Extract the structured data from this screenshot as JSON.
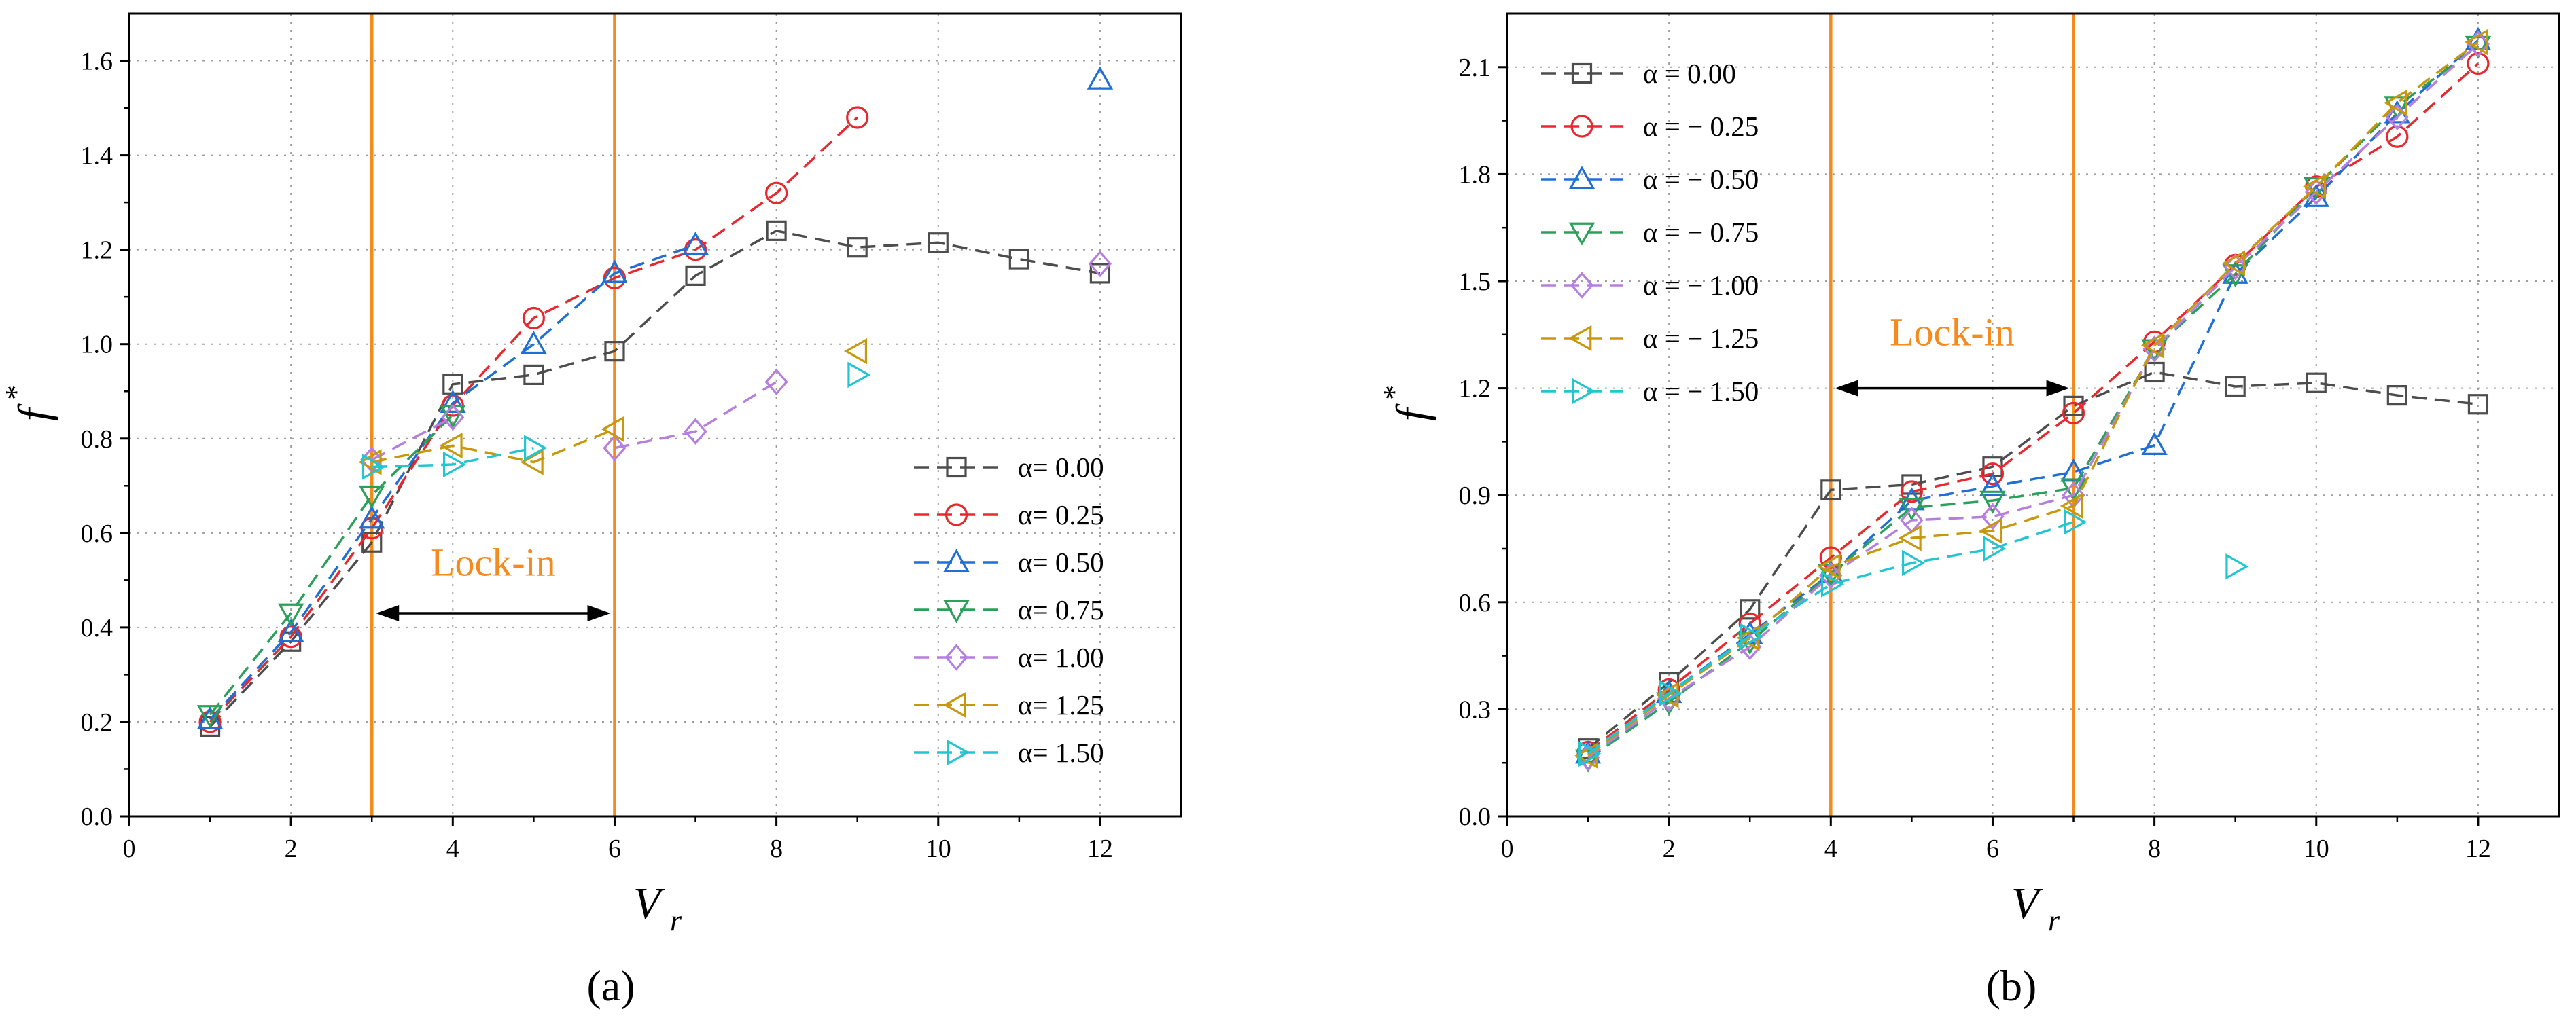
{
  "figure": {
    "captions": [
      "(a)",
      "(b)"
    ]
  },
  "colors": {
    "s0": "#4D4D4D",
    "s1": "#E8282E",
    "s2": "#1F6FD6",
    "s3": "#2CA05A",
    "s4": "#B57FE0",
    "s5": "#C8980C",
    "s6": "#22C5D0",
    "lockin": "#F58A1E",
    "grid": "#9E9E9E"
  },
  "chart_data": [
    {
      "type": "line",
      "caption": "(a)",
      "xlabel": "V",
      "xlabel_sub": "r",
      "ylabel": "f",
      "ylabel_sup": "*",
      "xlim": [
        0,
        13
      ],
      "ylim": [
        0,
        1.7
      ],
      "xticks": [
        0,
        2,
        4,
        6,
        8,
        10,
        12
      ],
      "yticks": [
        0.0,
        0.2,
        0.4,
        0.6,
        0.8,
        1.0,
        1.2,
        1.4,
        1.6
      ],
      "ytick_decimals": 1,
      "grid": true,
      "legend_position": "right",
      "lock_in": {
        "label": "Lock-in",
        "x_start": 3,
        "x_end": 6,
        "label_y": 0.51,
        "arrow_y": 0.43
      },
      "series": [
        {
          "name": "α=  0.00",
          "marker": "square",
          "color": "s0",
          "segments": [
            [
              [
                1,
                0.19
              ],
              [
                2,
                0.37
              ],
              [
                3,
                0.58
              ],
              [
                4,
                0.915
              ],
              [
                5,
                0.935
              ],
              [
                6,
                0.985
              ],
              [
                7,
                1.145
              ],
              [
                8,
                1.24
              ],
              [
                9,
                1.205
              ],
              [
                10,
                1.215
              ],
              [
                11,
                1.18
              ],
              [
                12,
                1.15
              ]
            ]
          ]
        },
        {
          "name": "α=  0.25",
          "marker": "circle",
          "color": "s1",
          "segments": [
            [
              [
                1,
                0.2
              ],
              [
                2,
                0.38
              ],
              [
                3,
                0.61
              ],
              [
                4,
                0.87
              ],
              [
                5,
                1.055
              ],
              [
                6,
                1.14
              ],
              [
                7,
                1.2
              ],
              [
                8,
                1.32
              ],
              [
                9,
                1.48
              ]
            ]
          ]
        },
        {
          "name": "α=  0.50",
          "marker": "triangle-up",
          "color": "s2",
          "segments": [
            [
              [
                1,
                0.205
              ],
              [
                2,
                0.39
              ],
              [
                3,
                0.63
              ],
              [
                4,
                0.875
              ],
              [
                5,
                1.0
              ],
              [
                6,
                1.15
              ],
              [
                7,
                1.21
              ]
            ],
            [
              [
                12,
                1.56
              ]
            ]
          ]
        },
        {
          "name": "α=  0.75",
          "marker": "triangle-down",
          "color": "s3",
          "segments": [
            [
              [
                1,
                0.215
              ],
              [
                2,
                0.43
              ],
              [
                3,
                0.68
              ],
              [
                4,
                0.85
              ]
            ]
          ]
        },
        {
          "name": "α=  1.00",
          "marker": "diamond",
          "color": "s4",
          "segments": [
            [
              [
                3,
                0.755
              ],
              [
                4,
                0.845
              ]
            ],
            [
              [
                6,
                0.78
              ],
              [
                7,
                0.815
              ],
              [
                8,
                0.92
              ]
            ],
            [
              [
                12,
                1.17
              ]
            ]
          ]
        },
        {
          "name": "α=  1.25",
          "marker": "triangle-left",
          "color": "s5",
          "segments": [
            [
              [
                3,
                0.75
              ],
              [
                4,
                0.785
              ],
              [
                5,
                0.75
              ],
              [
                6,
                0.82
              ]
            ],
            [
              [
                9,
                0.985
              ]
            ]
          ]
        },
        {
          "name": "α=  1.50",
          "marker": "triangle-right",
          "color": "s6",
          "segments": [
            [
              [
                3,
                0.74
              ],
              [
                4,
                0.745
              ],
              [
                5,
                0.78
              ]
            ],
            [
              [
                9,
                0.935
              ]
            ]
          ]
        }
      ]
    },
    {
      "type": "line",
      "caption": "(b)",
      "xlabel": "V",
      "xlabel_sub": "r",
      "ylabel": "f",
      "ylabel_sup": "*",
      "xlim": [
        0,
        13
      ],
      "ylim": [
        0,
        2.25
      ],
      "xticks": [
        0,
        2,
        4,
        6,
        8,
        10,
        12
      ],
      "yticks": [
        0.0,
        0.3,
        0.6,
        0.9,
        1.2,
        1.5,
        1.8,
        2.1
      ],
      "ytick_decimals": 1,
      "grid": true,
      "legend_position": "top-left",
      "lock_in": {
        "label": "Lock-in",
        "x_start": 4,
        "x_end": 7,
        "label_y": 1.32,
        "arrow_y": 1.2
      },
      "series": [
        {
          "name": "α =    0.00",
          "marker": "square",
          "color": "s0",
          "segments": [
            [
              [
                1,
                0.19
              ],
              [
                2,
                0.375
              ],
              [
                3,
                0.58
              ],
              [
                4,
                0.915
              ],
              [
                5,
                0.93
              ],
              [
                6,
                0.98
              ],
              [
                7,
                1.15
              ],
              [
                8,
                1.245
              ],
              [
                9,
                1.205
              ],
              [
                10,
                1.215
              ],
              [
                11,
                1.18
              ],
              [
                12,
                1.155
              ]
            ]
          ]
        },
        {
          "name": "α = − 0.25",
          "marker": "circle",
          "color": "s1",
          "segments": [
            [
              [
                1,
                0.18
              ],
              [
                2,
                0.355
              ],
              [
                3,
                0.54
              ],
              [
                4,
                0.725
              ],
              [
                5,
                0.91
              ],
              [
                6,
                0.96
              ],
              [
                7,
                1.13
              ],
              [
                8,
                1.33
              ],
              [
                9,
                1.545
              ],
              [
                10,
                1.765
              ],
              [
                11,
                1.905
              ],
              [
                12,
                2.11
              ]
            ]
          ]
        },
        {
          "name": "α = − 0.50",
          "marker": "triangle-up",
          "color": "s2",
          "segments": [
            [
              [
                1,
                0.175
              ],
              [
                2,
                0.345
              ],
              [
                3,
                0.51
              ],
              [
                4,
                0.68
              ],
              [
                5,
                0.885
              ],
              [
                6,
                0.925
              ],
              [
                7,
                0.965
              ],
              [
                8,
                1.04
              ],
              [
                9,
                1.52
              ],
              [
                10,
                1.735
              ],
              [
                11,
                1.97
              ],
              [
                12,
                2.175
              ]
            ]
          ]
        },
        {
          "name": "α = − 0.75",
          "marker": "triangle-down",
          "color": "s3",
          "segments": [
            [
              [
                1,
                0.16
              ],
              [
                2,
                0.32
              ],
              [
                3,
                0.49
              ],
              [
                4,
                0.68
              ],
              [
                5,
                0.865
              ],
              [
                6,
                0.885
              ],
              [
                7,
                0.92
              ],
              [
                8,
                1.31
              ],
              [
                9,
                1.52
              ],
              [
                10,
                1.765
              ],
              [
                11,
                1.99
              ],
              [
                12,
                2.16
              ]
            ]
          ]
        },
        {
          "name": "α = − 1.00",
          "marker": "diamond",
          "color": "s4",
          "segments": [
            [
              [
                1,
                0.165
              ],
              [
                2,
                0.33
              ],
              [
                3,
                0.475
              ],
              [
                4,
                0.675
              ],
              [
                5,
                0.83
              ],
              [
                6,
                0.84
              ],
              [
                7,
                0.9
              ],
              [
                8,
                1.31
              ],
              [
                9,
                1.54
              ],
              [
                10,
                1.75
              ],
              [
                11,
                1.96
              ],
              [
                12,
                2.165
              ]
            ]
          ]
        },
        {
          "name": "α = − 1.25",
          "marker": "triangle-left",
          "color": "s5",
          "segments": [
            [
              [
                1,
                0.17
              ],
              [
                2,
                0.34
              ],
              [
                3,
                0.5
              ],
              [
                4,
                0.7
              ],
              [
                5,
                0.78
              ],
              [
                6,
                0.8
              ],
              [
                7,
                0.87
              ],
              [
                8,
                1.32
              ],
              [
                9,
                1.55
              ],
              [
                10,
                1.765
              ],
              [
                11,
                2.0
              ],
              [
                12,
                2.17
              ]
            ]
          ]
        },
        {
          "name": "α = − 1.50",
          "marker": "triangle-right",
          "color": "s6",
          "segments": [
            [
              [
                1,
                0.175
              ],
              [
                2,
                0.345
              ],
              [
                3,
                0.505
              ],
              [
                4,
                0.65
              ],
              [
                5,
                0.71
              ],
              [
                6,
                0.75
              ],
              [
                7,
                0.825
              ]
            ],
            [
              [
                9,
                0.7
              ]
            ]
          ]
        }
      ]
    }
  ]
}
